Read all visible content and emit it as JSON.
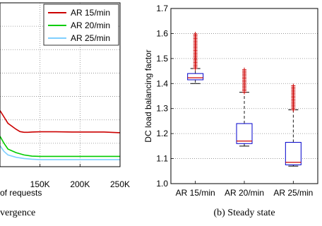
{
  "chart_data": [
    {
      "type": "line",
      "xlabel_visible_fragment": "of requests",
      "x_ticks": [
        "150K",
        "200K",
        "250K"
      ],
      "x_tick_values": [
        150000,
        200000,
        250000
      ],
      "xlim": [
        100000,
        250000
      ],
      "ylim": [
        1.0,
        1.7
      ],
      "grid": true,
      "legend": "top-right",
      "series": [
        {
          "name": "AR 15/min",
          "color": "#cc0000",
          "x": [
            100000,
            110000,
            120000,
            125000,
            130000,
            135000,
            140000,
            150000,
            170000,
            190000,
            210000,
            230000,
            250000
          ],
          "y": [
            1.24,
            1.185,
            1.16,
            1.15,
            1.147,
            1.147,
            1.148,
            1.149,
            1.149,
            1.148,
            1.148,
            1.148,
            1.145
          ]
        },
        {
          "name": "AR 20/min",
          "color": "#00cc00",
          "x": [
            100000,
            105000,
            110000,
            120000,
            130000,
            140000,
            150000,
            170000,
            190000,
            210000,
            230000,
            250000
          ],
          "y": [
            1.13,
            1.1,
            1.075,
            1.06,
            1.05,
            1.045,
            1.044,
            1.044,
            1.044,
            1.044,
            1.044,
            1.044
          ]
        },
        {
          "name": "AR 25/min",
          "color": "#7fcfff",
          "x": [
            100000,
            105000,
            110000,
            120000,
            130000,
            140000,
            150000,
            170000,
            190000,
            210000,
            230000,
            250000
          ],
          "y": [
            1.09,
            1.065,
            1.05,
            1.04,
            1.035,
            1.032,
            1.03,
            1.03,
            1.03,
            1.03,
            1.03,
            1.03
          ]
        }
      ],
      "caption_fragment": "vergence"
    },
    {
      "type": "box",
      "ylabel": "DC load balancing factor",
      "ylim": [
        1.0,
        1.7
      ],
      "y_ticks": [
        "1.0",
        "1.1",
        "1.2",
        "1.3",
        "1.4",
        "1.5",
        "1.6",
        "1.7"
      ],
      "y_tick_values": [
        1.0,
        1.1,
        1.2,
        1.3,
        1.4,
        1.5,
        1.6,
        1.7
      ],
      "grid": true,
      "categories": [
        "AR 15/min",
        "AR 20/min",
        "AR 25/min"
      ],
      "boxes": [
        {
          "whisker_low": 1.4,
          "q1": 1.415,
          "median": 1.423,
          "q3": 1.44,
          "whisker_high": 1.46,
          "outliers_from": 1.46,
          "outliers_to": 1.6
        },
        {
          "whisker_low": 1.15,
          "q1": 1.16,
          "median": 1.17,
          "q3": 1.24,
          "whisker_high": 1.365,
          "outliers_from": 1.365,
          "outliers_to": 1.46
        },
        {
          "whisker_low": 1.07,
          "q1": 1.075,
          "median": 1.085,
          "q3": 1.165,
          "whisker_high": 1.295,
          "outliers_from": 1.295,
          "outliers_to": 1.395
        }
      ],
      "colors": {
        "box": "#0000cc",
        "median": "#cc0000",
        "outlier": "#cc0000",
        "whisker": "#000000"
      },
      "caption": "(b) Steady state"
    }
  ]
}
